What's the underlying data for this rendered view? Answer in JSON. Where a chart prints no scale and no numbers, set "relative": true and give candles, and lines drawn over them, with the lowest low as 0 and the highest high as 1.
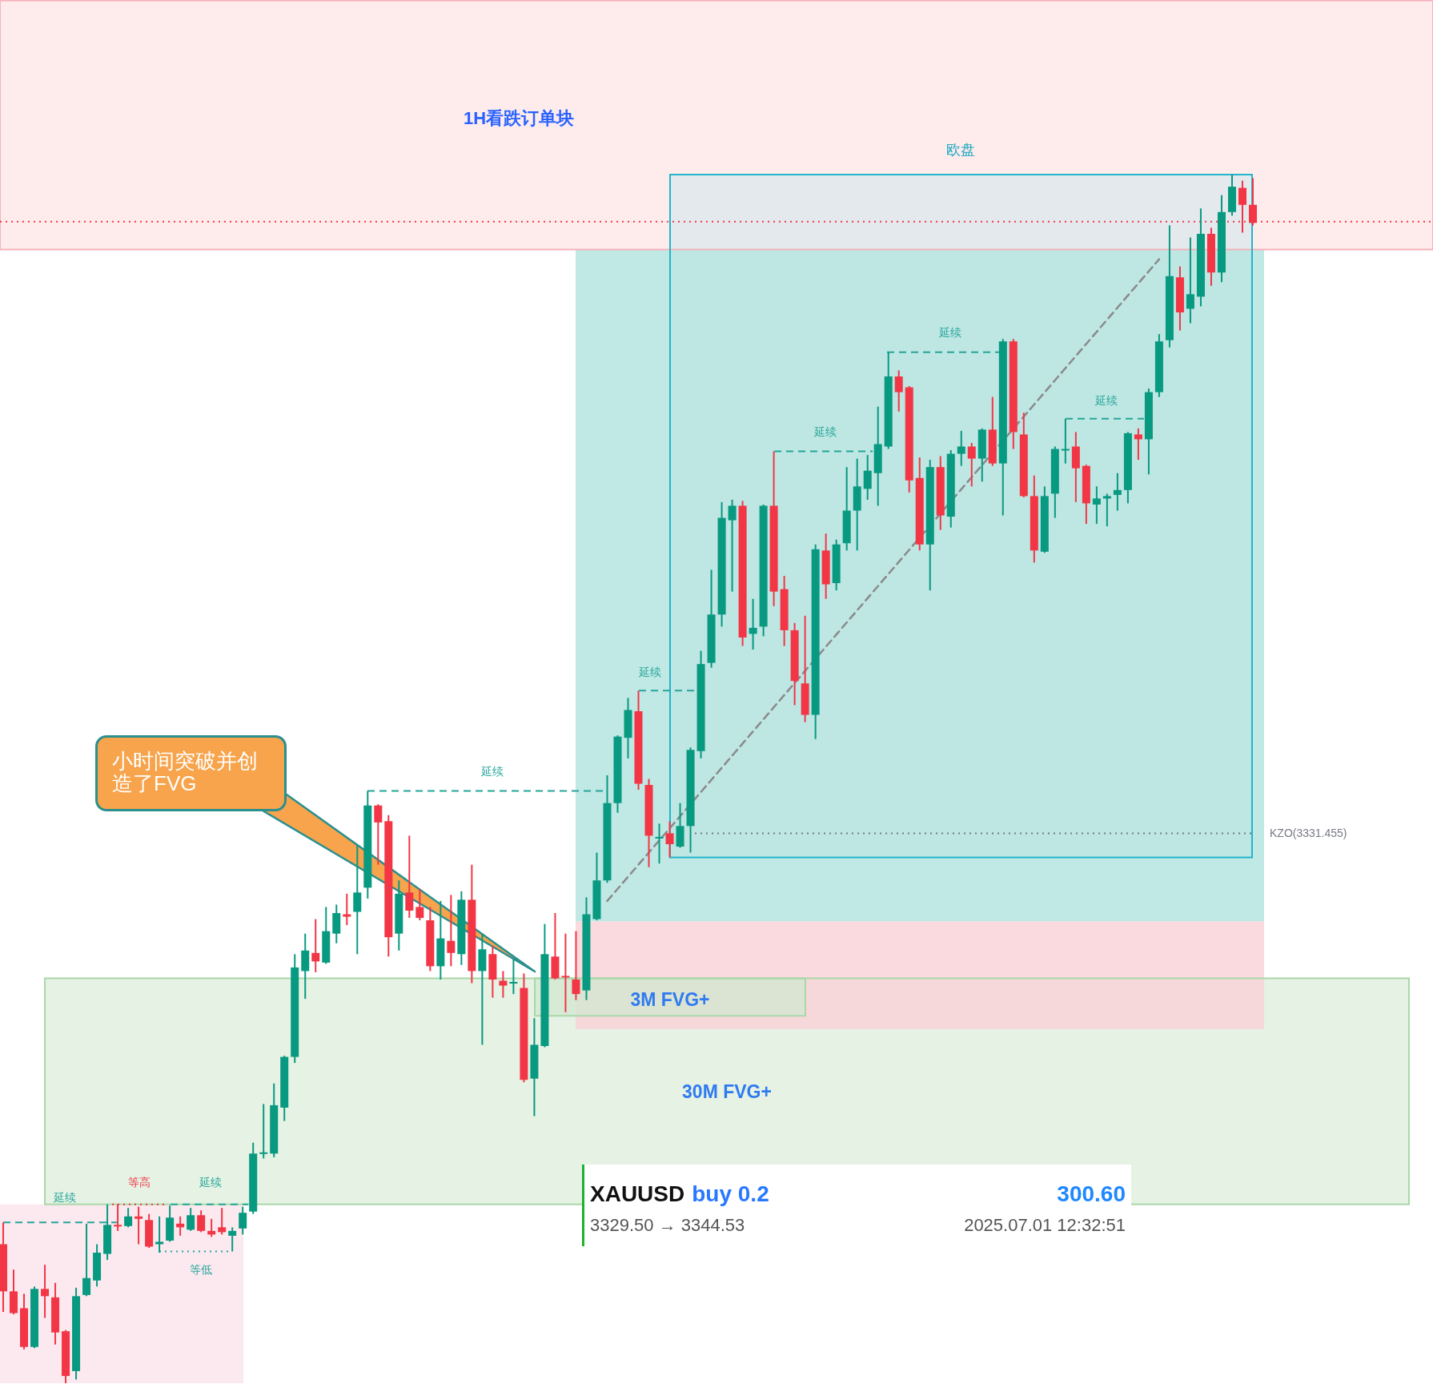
{
  "chart_data": {
    "type": "candlestick",
    "relative": true,
    "categories": [
      null,
      null,
      null,
      null,
      null,
      null,
      null,
      null,
      null,
      null,
      null,
      null,
      null,
      null,
      null,
      null,
      null,
      null,
      null,
      null,
      null,
      null,
      null,
      null,
      null,
      null,
      null,
      null,
      null,
      null,
      null,
      null,
      null,
      null,
      null,
      null,
      null,
      null,
      null,
      null,
      null,
      null,
      null,
      null,
      null,
      null,
      null,
      null,
      null,
      null,
      null,
      null,
      null,
      null,
      null,
      null,
      null,
      null,
      null,
      null,
      null,
      null,
      null,
      null,
      null,
      null,
      null,
      null,
      null,
      null,
      null,
      null,
      null,
      null,
      null,
      null,
      null,
      null,
      null,
      null,
      null,
      null,
      null,
      null,
      null,
      null,
      null,
      null,
      null,
      null,
      null,
      null,
      null,
      null,
      null,
      null,
      null,
      null,
      null,
      null,
      null,
      null,
      null,
      null,
      null,
      null,
      null,
      null,
      null,
      null,
      null,
      null,
      null,
      null,
      null,
      null,
      null,
      null,
      null,
      null,
      null
    ],
    "ohlc": [
      [
        0.115,
        0.133,
        0.059,
        0.076
      ],
      [
        0.076,
        0.094,
        0.057,
        0.058
      ],
      [
        0.062,
        0.074,
        0.028,
        0.03
      ],
      [
        0.03,
        0.08,
        0.029,
        0.078
      ],
      [
        0.078,
        0.098,
        0.054,
        0.072
      ],
      [
        0.071,
        0.083,
        0.032,
        0.042
      ],
      [
        0.043,
        0.044,
        0,
        0.006
      ],
      [
        0.01,
        0.079,
        0.003,
        0.072
      ],
      [
        0.073,
        0.132,
        0.072,
        0.087
      ],
      [
        0.085,
        0.115,
        0.08,
        0.108
      ],
      [
        0.107,
        0.148,
        0.102,
        0.131
      ],
      [
        0.131,
        0.148,
        0.126,
        0.13
      ],
      [
        0.13,
        0.145,
        0.129,
        0.138
      ],
      [
        0.138,
        0.146,
        0.115,
        0.136
      ],
      [
        0.135,
        0.14,
        0.112,
        0.113
      ],
      [
        0.115,
        0.138,
        0.108,
        0.117
      ],
      [
        0.118,
        0.147,
        0.117,
        0.137
      ],
      [
        0.132,
        0.138,
        0.122,
        0.129
      ],
      [
        0.127,
        0.145,
        0.126,
        0.139
      ],
      [
        0.139,
        0.143,
        0.125,
        0.126
      ],
      [
        0.126,
        0.136,
        0.121,
        0.123
      ],
      [
        0.129,
        0.145,
        0.123,
        0.125
      ],
      [
        0.122,
        0.129,
        0.109,
        0.126
      ],
      [
        0.128,
        0.146,
        0.123,
        0.141
      ],
      [
        0.142,
        0.199,
        0.14,
        0.19
      ],
      [
        0.19,
        0.231,
        0.186,
        0.191
      ],
      [
        0.19,
        0.248,
        0.187,
        0.23
      ],
      [
        0.228,
        0.271,
        0.217,
        0.27
      ],
      [
        0.27,
        0.355,
        0.265,
        0.344
      ],
      [
        0.341,
        0.372,
        0.318,
        0.358
      ],
      [
        0.356,
        0.384,
        0.34,
        0.349
      ],
      [
        0.348,
        0.394,
        0.347,
        0.374
      ],
      [
        0.372,
        0.396,
        0.364,
        0.389
      ],
      [
        0.388,
        0.405,
        0.379,
        0.386
      ],
      [
        0.39,
        0.445,
        0.355,
        0.406
      ],
      [
        0.41,
        0.49,
        0.401,
        0.478
      ],
      [
        0.478,
        0.479,
        0.429,
        0.464
      ],
      [
        0.465,
        0.47,
        0.353,
        0.369
      ],
      [
        0.372,
        0.416,
        0.358,
        0.405
      ],
      [
        0.406,
        0.453,
        0.385,
        0.391
      ],
      [
        0.394,
        0.409,
        0.383,
        0.385
      ],
      [
        0.383,
        0.394,
        0.341,
        0.345
      ],
      [
        0.345,
        0.399,
        0.334,
        0.368
      ],
      [
        0.366,
        0.404,
        0.345,
        0.356
      ],
      [
        0.355,
        0.407,
        0.346,
        0.4
      ],
      [
        0.4,
        0.429,
        0.331,
        0.341
      ],
      [
        0.341,
        0.372,
        0.28,
        0.359
      ],
      [
        0.355,
        0.362,
        0.319,
        0.334
      ],
      [
        0.333,
        0.341,
        0.319,
        0.329
      ],
      [
        0.331,
        0.351,
        0.322,
        0.332
      ],
      [
        0.327,
        0.339,
        0.249,
        0.251
      ],
      [
        0.252,
        0.302,
        0.221,
        0.28
      ],
      [
        0.279,
        0.38,
        0.278,
        0.355
      ],
      [
        0.353,
        0.389,
        0.334,
        0.335
      ],
      [
        0.337,
        0.372,
        0.307,
        0.336
      ],
      [
        0.334,
        0.374,
        0.317,
        0.322
      ],
      [
        0.325,
        0.402,
        0.317,
        0.388
      ],
      [
        0.384,
        0.439,
        0.383,
        0.416
      ],
      [
        0.416,
        0.503,
        0.414,
        0.48
      ],
      [
        0.48,
        0.536,
        0.472,
        0.535
      ],
      [
        0.534,
        0.567,
        0.517,
        0.557
      ],
      [
        0.556,
        0.573,
        0.491,
        0.496
      ],
      [
        0.495,
        0.5,
        0.427,
        0.453
      ],
      [
        0.451,
        0.463,
        0.43,
        0.452
      ],
      [
        0.455,
        0.465,
        0.435,
        0.446
      ],
      [
        0.444,
        0.48,
        0.443,
        0.461
      ],
      [
        0.461,
        0.526,
        0.439,
        0.524
      ],
      [
        0.523,
        0.606,
        0.517,
        0.595
      ],
      [
        0.596,
        0.673,
        0.592,
        0.636
      ],
      [
        0.636,
        0.729,
        0.626,
        0.716
      ],
      [
        0.714,
        0.731,
        0.655,
        0.726
      ],
      [
        0.726,
        0.73,
        0.61,
        0.617
      ],
      [
        0.62,
        0.649,
        0.607,
        0.625
      ],
      [
        0.626,
        0.727,
        0.618,
        0.726
      ],
      [
        0.726,
        0.771,
        0.643,
        0.655
      ],
      [
        0.657,
        0.668,
        0.61,
        0.623
      ],
      [
        0.623,
        0.629,
        0.561,
        0.581
      ],
      [
        0.579,
        0.635,
        0.547,
        0.553
      ],
      [
        0.553,
        0.694,
        0.533,
        0.69
      ],
      [
        0.689,
        0.703,
        0.649,
        0.661
      ],
      [
        0.662,
        0.698,
        0.656,
        0.694
      ],
      [
        0.695,
        0.758,
        0.689,
        0.722
      ],
      [
        0.722,
        0.765,
        0.689,
        0.742
      ],
      [
        0.74,
        0.768,
        0.731,
        0.755
      ],
      [
        0.753,
        0.808,
        0.726,
        0.777
      ],
      [
        0.775,
        0.853,
        0.773,
        0.833
      ],
      [
        0.833,
        0.838,
        0.804,
        0.82
      ],
      [
        0.824,
        0.825,
        0.737,
        0.747
      ],
      [
        0.749,
        0.766,
        0.689,
        0.694
      ],
      [
        0.694,
        0.764,
        0.656,
        0.758
      ],
      [
        0.758,
        0.767,
        0.706,
        0.718
      ],
      [
        0.717,
        0.772,
        0.708,
        0.769
      ],
      [
        0.769,
        0.788,
        0.759,
        0.775
      ],
      [
        0.775,
        0.778,
        0.742,
        0.765
      ],
      [
        0.765,
        0.79,
        0.746,
        0.789
      ],
      [
        0.789,
        0.816,
        0.759,
        0.761
      ],
      [
        0.761,
        0.864,
        0.718,
        0.862
      ],
      [
        0.862,
        0.864,
        0.773,
        0.787
      ],
      [
        0.785,
        0.803,
        0.733,
        0.734
      ],
      [
        0.734,
        0.751,
        0.679,
        0.689
      ],
      [
        0.688,
        0.742,
        0.687,
        0.734
      ],
      [
        0.736,
        0.775,
        0.716,
        0.773
      ],
      [
        0.772,
        0.798,
        0.761,
        0.773
      ],
      [
        0.775,
        0.787,
        0.729,
        0.757
      ],
      [
        0.759,
        0.76,
        0.711,
        0.728
      ],
      [
        0.727,
        0.742,
        0.711,
        0.732
      ],
      [
        0.732,
        0.736,
        0.709,
        0.734
      ],
      [
        0.735,
        0.753,
        0.722,
        0.739
      ],
      [
        0.739,
        0.787,
        0.728,
        0.786
      ],
      [
        0.785,
        0.79,
        0.764,
        0.781
      ],
      [
        0.781,
        0.823,
        0.752,
        0.82
      ],
      [
        0.82,
        0.868,
        0.816,
        0.862
      ],
      [
        0.863,
        0.958,
        0.857,
        0.916
      ],
      [
        0.915,
        0.924,
        0.871,
        0.886
      ],
      [
        0.889,
        0.948,
        0.877,
        0.901
      ],
      [
        0.899,
        0.972,
        0.891,
        0.951
      ],
      [
        0.951,
        0.956,
        0.908,
        0.919
      ],
      [
        0.919,
        0.983,
        0.911,
        0.969
      ],
      [
        0.969,
        1,
        0.966,
        0.99
      ],
      [
        0.989,
        0.995,
        0.952,
        0.975
      ],
      [
        0.975,
        0.997,
        0.958,
        0.96
      ]
    ],
    "series": [
      {
        "type": "line",
        "color": "#8a8a8a",
        "line_style": "dashed",
        "values": [
          null,
          null,
          null,
          null,
          null,
          null,
          null,
          null,
          null,
          null,
          null,
          null,
          null,
          null,
          null,
          null,
          null,
          null,
          null,
          null,
          null,
          null,
          null,
          null,
          null,
          null,
          null,
          null,
          null,
          null,
          null,
          null,
          null,
          null,
          null,
          null,
          null,
          null,
          null,
          null,
          null,
          null,
          null,
          null,
          null,
          null,
          null,
          null,
          null,
          null,
          null,
          null,
          null,
          null,
          null,
          null,
          null,
          null,
          0.399,
          null,
          null,
          null,
          null,
          null,
          null,
          null,
          null,
          null,
          null,
          null,
          null,
          null,
          null,
          null,
          null,
          null,
          null,
          null,
          null,
          null,
          null,
          null,
          null,
          null,
          null,
          null,
          null,
          null,
          null,
          null,
          null,
          null,
          null,
          null,
          null,
          null,
          null,
          null,
          null,
          null,
          null,
          null,
          null,
          null,
          null,
          null,
          null,
          null,
          null,
          null,
          null,
          0.93,
          null,
          null,
          null,
          null,
          null,
          null,
          null,
          null,
          null
        ]
      }
    ],
    "bands": [
      {
        "axis": "y",
        "from": 0.938,
        "to": 1.144,
        "label": "1H看跌订单块",
        "color": "#feeced"
      },
      {
        "axis": "y",
        "from": 0.435,
        "to": 1.0,
        "label": "欧盘",
        "color": "#e3e9ec"
      },
      {
        "axis": "y",
        "from": 0.382,
        "to": 0.938,
        "color": "#b9e6e2"
      },
      {
        "axis": "y",
        "from": 0.148,
        "to": 0.335,
        "label": "30M FVG+",
        "color": "#e5f2e4"
      },
      {
        "axis": "y",
        "from": 0.293,
        "to": 0.382,
        "color": "#f9d4d8"
      },
      {
        "axis": "y",
        "from": 0.304,
        "to": 0.335,
        "label": "3M FVG+",
        "color": "#d2e7d0"
      },
      {
        "axis": "y",
        "from": 0,
        "to": 0.148,
        "color": "#fbe7ed"
      }
    ],
    "ref_lines": [
      {
        "axis": "y",
        "value": 0.961,
        "color": "#f23645",
        "line_style": "dotted"
      },
      {
        "axis": "y",
        "value": 0.455,
        "label": "KZO(3331.455)",
        "color": "#787b86",
        "line_style": "dotted"
      },
      {
        "axis": "y",
        "value": 0.133,
        "label": "延续",
        "color": "#26a69a",
        "line_style": "dashed"
      },
      {
        "axis": "y",
        "value": 0.148,
        "label": "等高",
        "color": "#f23645",
        "line_style": "dotted"
      },
      {
        "axis": "y",
        "value": 0.148,
        "label": "延续",
        "color": "#26a69a",
        "line_style": "dashed"
      },
      {
        "axis": "y",
        "value": 0.109,
        "label": "等低",
        "color": "#26a69a",
        "line_style": "dotted"
      },
      {
        "axis": "y",
        "value": 0.49,
        "label": "延续",
        "color": "#26a69a",
        "line_style": "dashed"
      },
      {
        "axis": "y",
        "value": 0.573,
        "label": "延续",
        "color": "#26a69a",
        "line_style": "dashed"
      },
      {
        "axis": "y",
        "value": 0.771,
        "label": "延续",
        "color": "#26a69a",
        "line_style": "dashed"
      },
      {
        "axis": "y",
        "value": 0.853,
        "label": "延续",
        "color": "#26a69a",
        "line_style": "dashed"
      },
      {
        "axis": "y",
        "value": 0.798,
        "label": "延续",
        "color": "#26a69a",
        "line_style": "dashed"
      }
    ],
    "annotations": [
      "小时间突破并创造了FVG",
      "XAUUSD",
      "buy 0.2",
      "300.60",
      "3329.50 → 3344.53",
      "2025.07.01 12:32:51"
    ]
  }
}
